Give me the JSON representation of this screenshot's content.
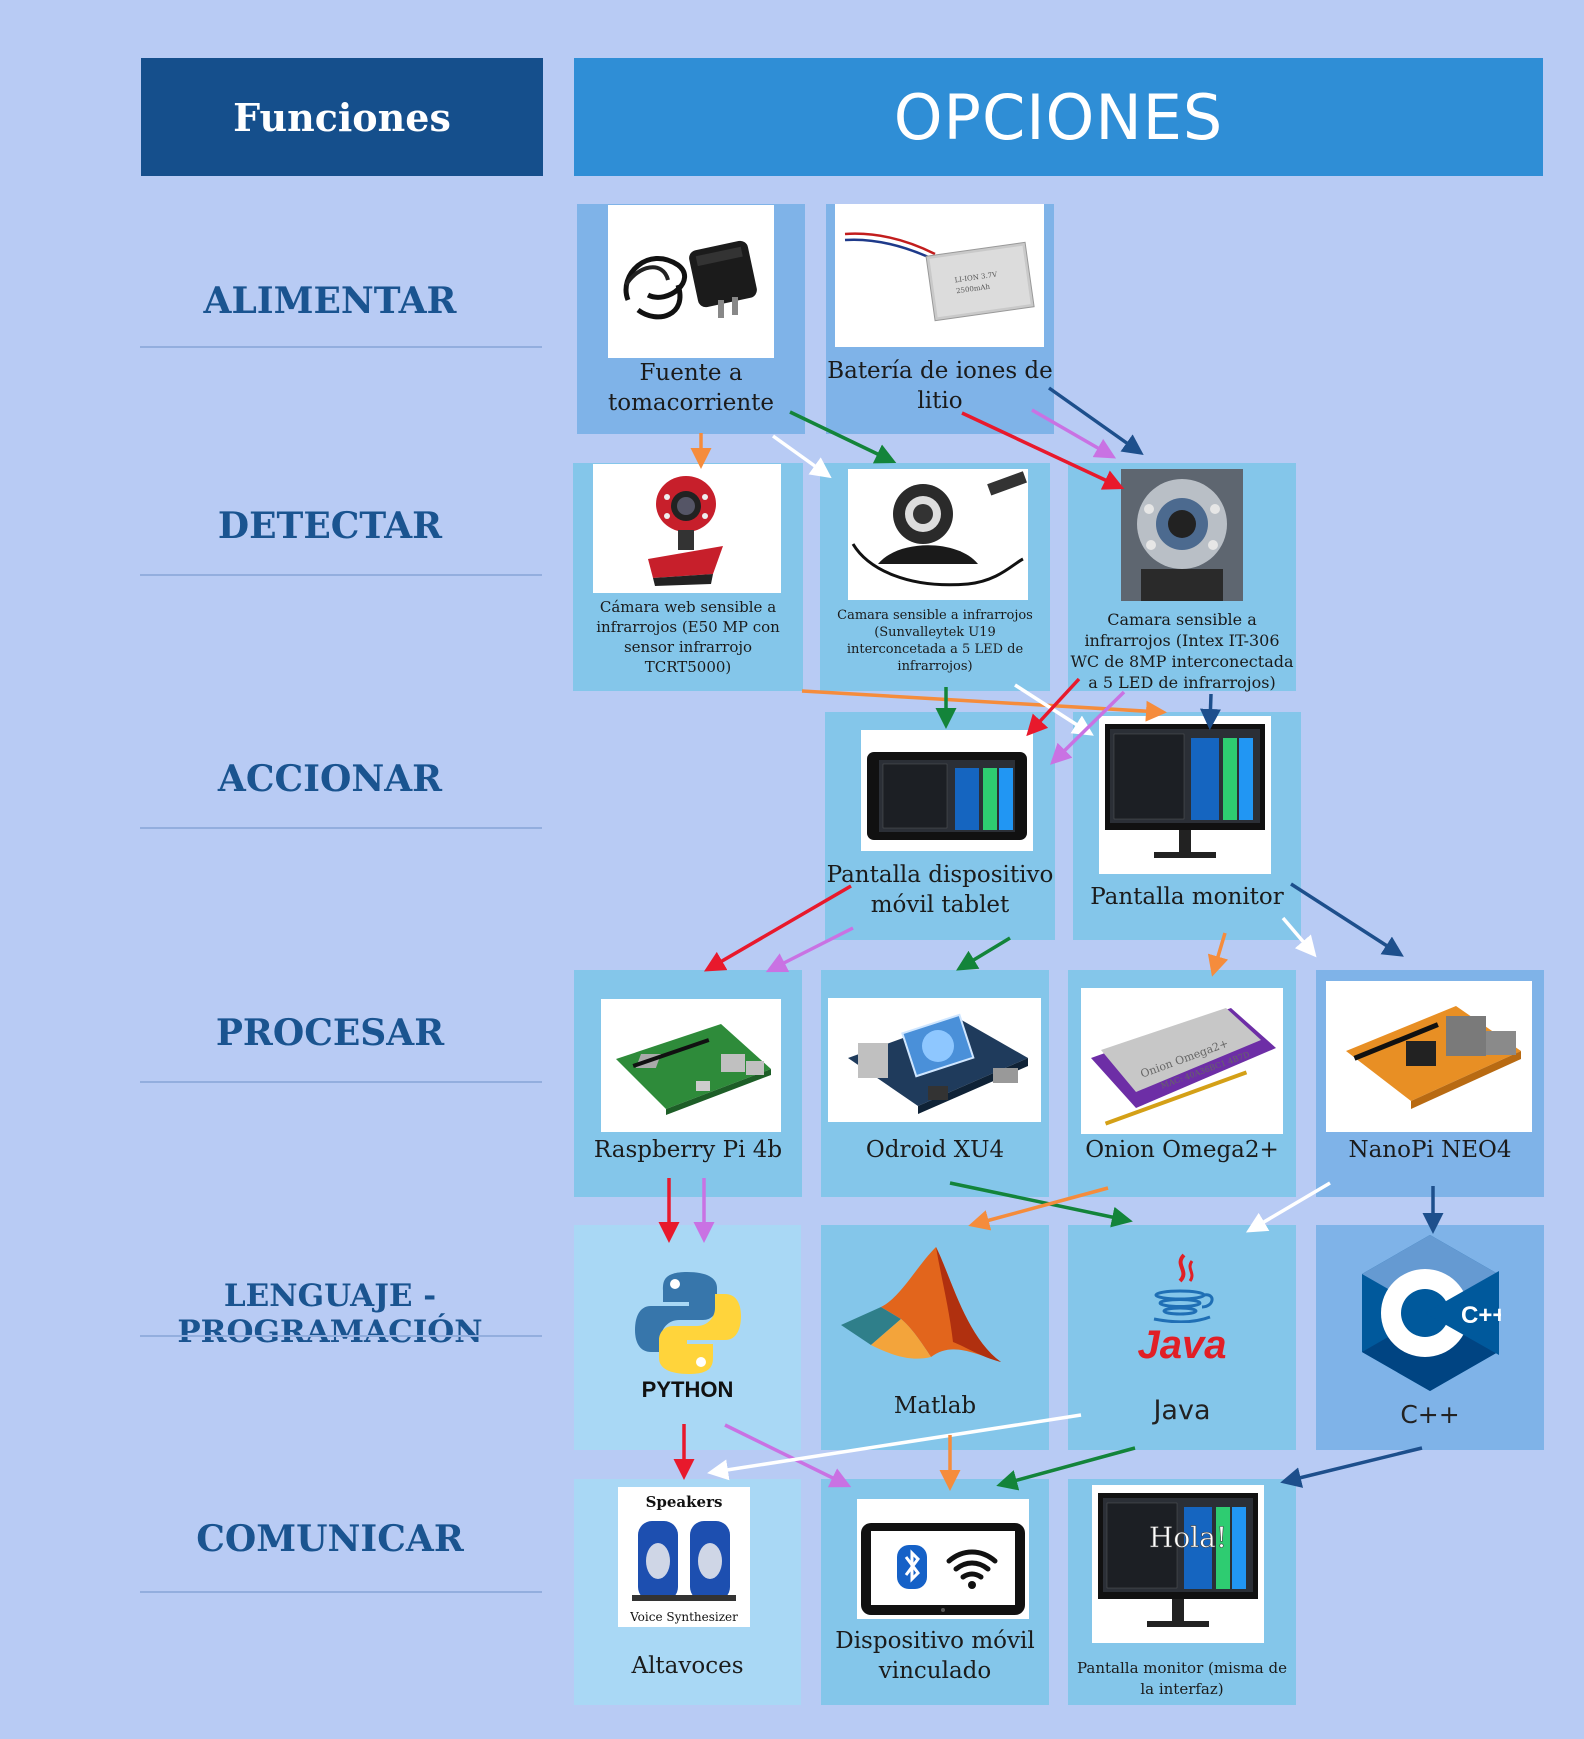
{
  "header": {
    "funciones": "Funciones",
    "opciones": "OPCIONES"
  },
  "rows": {
    "alimentar": "ALIMENTAR",
    "detectar": "DETECTAR",
    "accionar": "ACCIONAR",
    "procesar": "PROCESAR",
    "lenguaje": "LENGUAJE - PROGRAMACIÓN",
    "comunicar": "COMUNICAR"
  },
  "options": {
    "fuente": "Fuente a tomacorriente",
    "bateria": "Batería de iones de litio",
    "camara_web": "Cámara web  sensible a infrarrojos (E50 MP con sensor infrarrojo TCRT5000)",
    "camara_sunvalley": "Camara sensible a infrarrojos (Sunvalleytek U19 interconcetada a 5 LED de infrarrojos)",
    "camara_intex": "Camara sensible a infrarrojos (Intex IT-306 WC de 8MP interconectada a 5 LED de infrarrojos)",
    "pantalla_tablet": "Pantalla dispositivo móvil tablet",
    "pantalla_monitor": "Pantalla monitor",
    "raspberry": "Raspberry Pi 4b",
    "odroid": "Odroid XU4",
    "onion": "Onion Omega2+",
    "nanopi": "NanoPi NEO4",
    "python": "PYTHON",
    "matlab": "Matlab",
    "java": "Java",
    "java_logo": "Java",
    "cpp": "C++",
    "cpp_logo": "C++",
    "altavoces": "Altavoces",
    "movil_vinculado": "Dispositivo móvil vinculado",
    "monitor_interfaz": "Pantalla monitor (misma de la interfaz)",
    "speakers_title": "Speakers",
    "speakers_sub": "Voice Synthesizer",
    "hola": "Hola!"
  },
  "colors": {
    "background": "#b8cbf4",
    "header_dark": "#154f8c",
    "header_light": "#2f8ed6",
    "label": "#1a5490",
    "arrow_red": "#e8192c",
    "arrow_green": "#13843a",
    "arrow_orange": "#f58c3c",
    "arrow_purple": "#c972e3",
    "arrow_navy": "#1d4f8c",
    "arrow_white": "#ffffff"
  }
}
